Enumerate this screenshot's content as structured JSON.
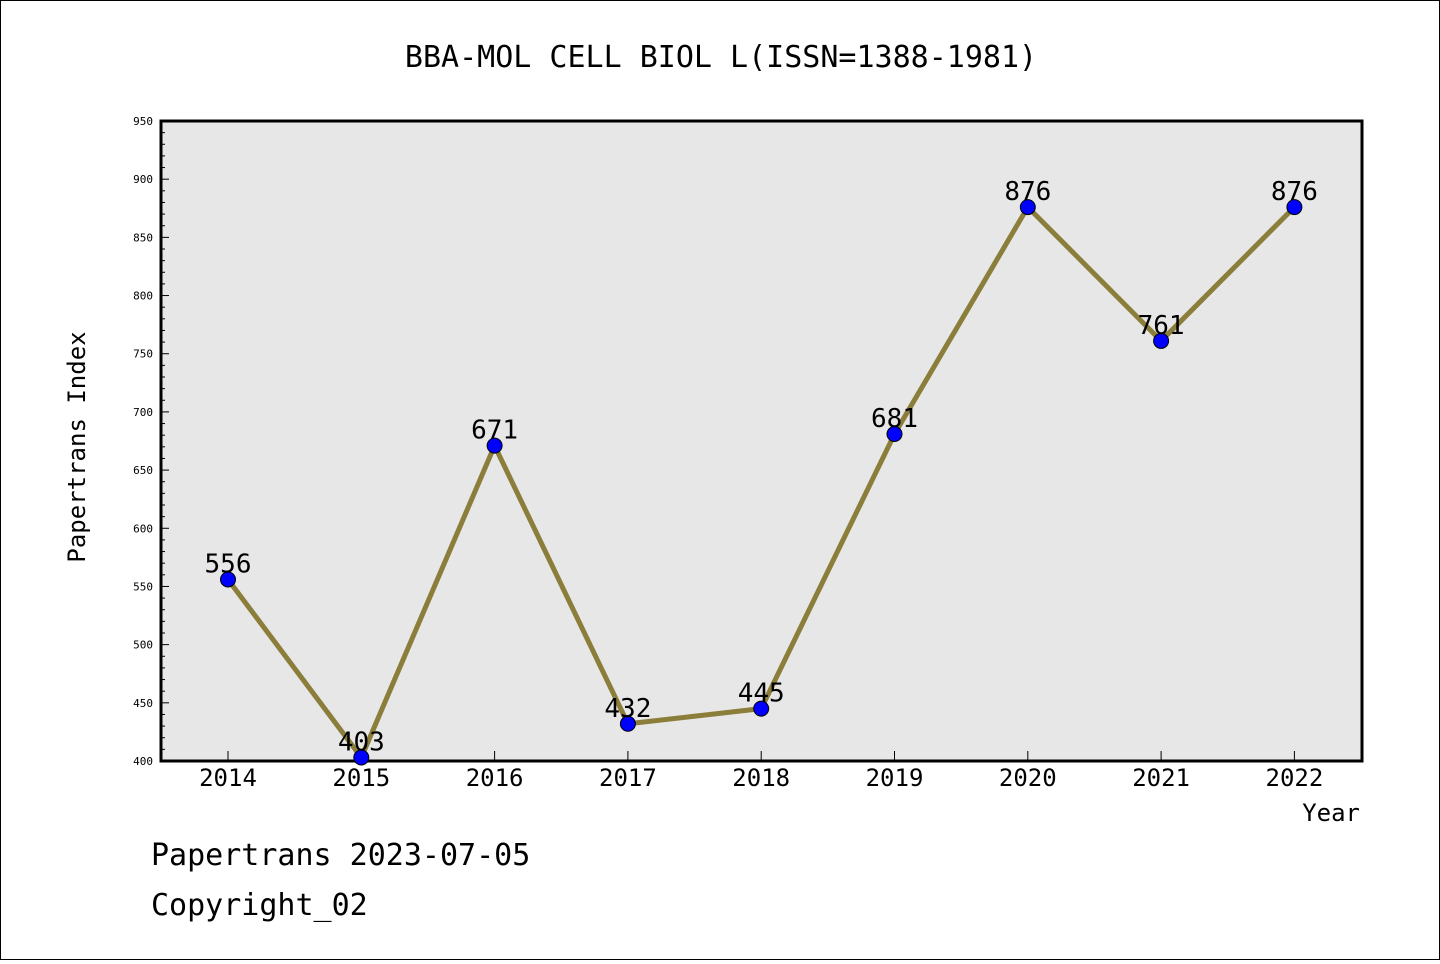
{
  "chart_data": {
    "type": "line",
    "title": "BBA-MOL CELL BIOL L(ISSN=1388-1981)",
    "xlabel": "Year",
    "ylabel": "Papertrans Index",
    "categories": [
      "2014",
      "2015",
      "2016",
      "2017",
      "2018",
      "2019",
      "2020",
      "2021",
      "2022"
    ],
    "series": [
      {
        "values": [
          556,
          403,
          671,
          432,
          445,
          681,
          876,
          761,
          876
        ]
      }
    ],
    "ylim": [
      400,
      950
    ],
    "yticks": [
      400,
      450,
      500,
      550,
      600,
      650,
      700,
      750,
      800,
      850,
      900,
      950
    ],
    "grid": false,
    "colors": {
      "line": "#8b7d3a",
      "marker": "#0000ff",
      "plot_bg": "#e7e7e7"
    }
  },
  "footer": {
    "line1": "Papertrans 2023-07-05",
    "line2": "Copyright_02"
  }
}
